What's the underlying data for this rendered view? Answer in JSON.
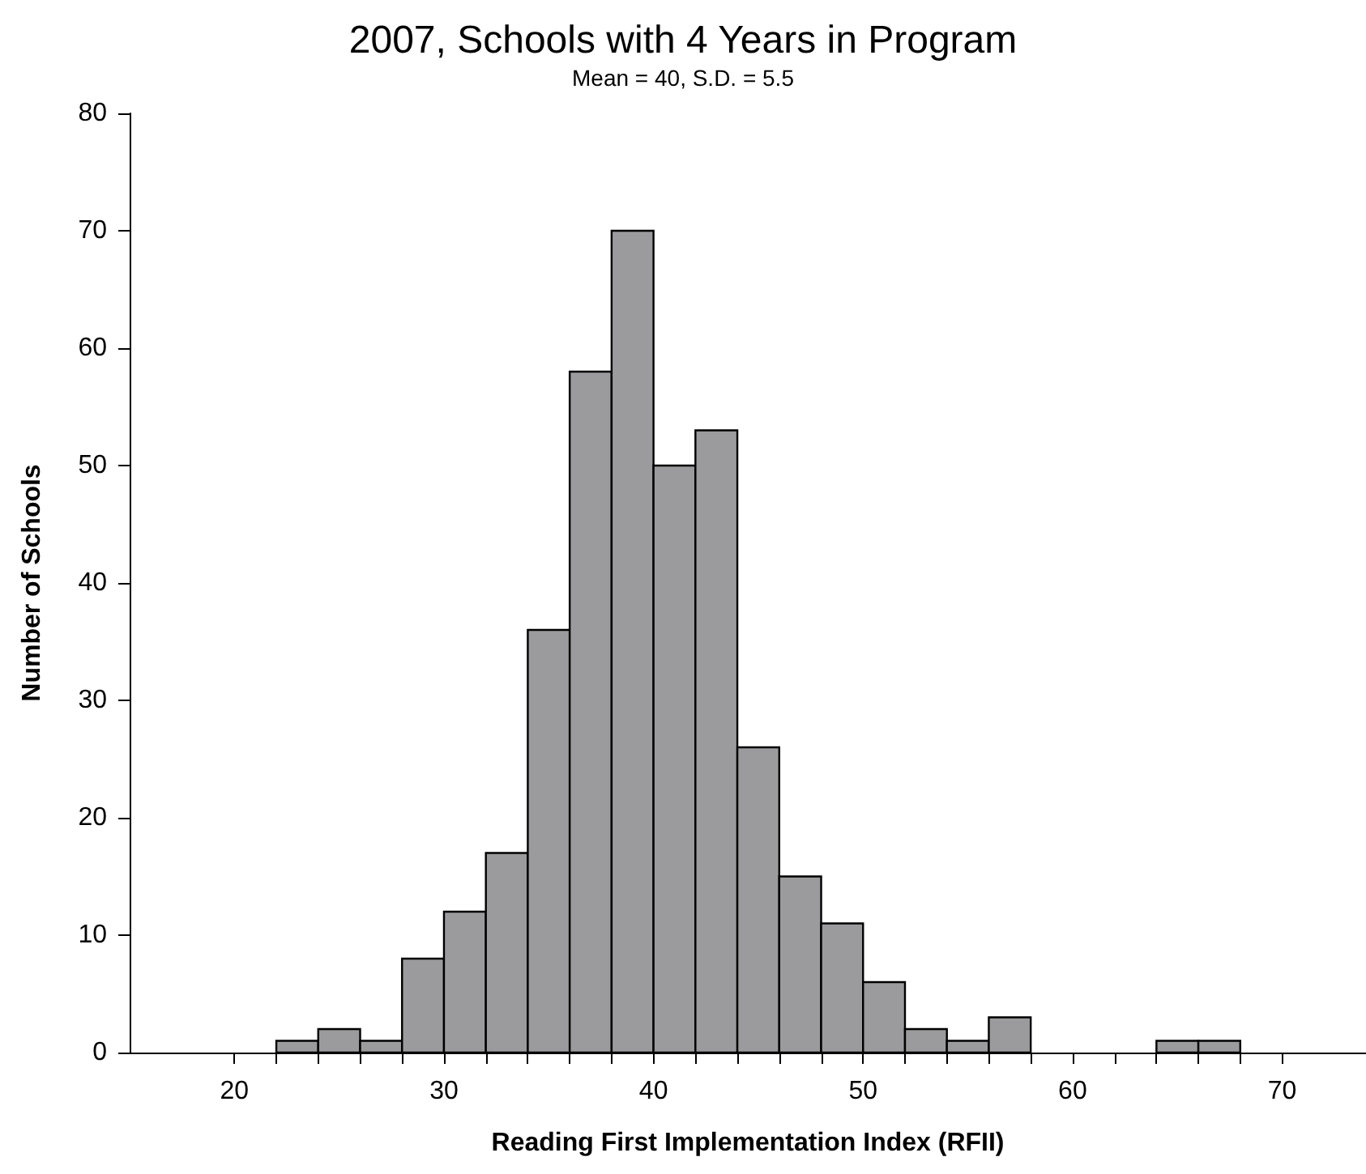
{
  "chart_data": {
    "type": "histogram",
    "title": "2007, Schools with 4 Years in Program",
    "subtitle": "Mean = 40, S.D. = 5.5",
    "xlabel": "Reading First Implementation Index (RFII)",
    "ylabel": "Number of Schools",
    "bins": [
      22,
      24,
      26,
      28,
      30,
      32,
      34,
      36,
      38,
      40,
      42,
      44,
      46,
      48,
      50,
      52,
      54,
      56,
      58,
      60,
      62,
      64,
      66,
      68
    ],
    "values": [
      1,
      2,
      1,
      8,
      12,
      17,
      36,
      58,
      70,
      50,
      53,
      26,
      15,
      11,
      6,
      2,
      1,
      3,
      0,
      0,
      0,
      1,
      1
    ],
    "color": "#9b9a9c",
    "xlim": [
      15,
      74
    ],
    "xticks": [
      20,
      {
        "value": 22,
        "label": null
      },
      {
        "value": 24,
        "label": null
      },
      {
        "value": 26,
        "label": null
      },
      {
        "value": 28,
        "label": null
      },
      30,
      {
        "value": 32,
        "label": null
      },
      {
        "value": 34,
        "label": null
      },
      {
        "value": 36,
        "label": null
      },
      {
        "value": 38,
        "label": null
      },
      40,
      {
        "value": 42,
        "label": null
      },
      {
        "value": 44,
        "label": null
      },
      {
        "value": 46,
        "label": null
      },
      {
        "value": 48,
        "label": null
      },
      50,
      {
        "value": 52,
        "label": null
      },
      {
        "value": 54,
        "label": null
      },
      {
        "value": 56,
        "label": null
      },
      {
        "value": 58,
        "label": null
      },
      60,
      {
        "value": 62,
        "label": null
      },
      {
        "value": 64,
        "label": null
      },
      {
        "value": 66,
        "label": null
      },
      {
        "value": 68,
        "label": null
      },
      70
    ],
    "ylim": [
      0,
      80
    ],
    "yticks": [
      0,
      10,
      20,
      30,
      40,
      50,
      60,
      70,
      80
    ],
    "grid": false
  }
}
